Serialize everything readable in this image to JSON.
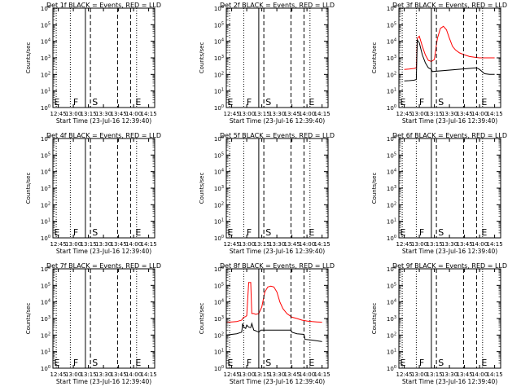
{
  "chart_data": [
    {
      "type": "line",
      "title": "Det 1f BLACK = Events, RED = LLD",
      "xlabel": "Start Time (23-Jul-16 12:39:40)",
      "ylabel": "Counts/sec",
      "xticks": [
        "12:45",
        "13:00",
        "13:15",
        "13:30",
        "13:45",
        "14:00",
        "14:15"
      ],
      "yticks": [
        "10^0",
        "10^1",
        "10^2",
        "10^3",
        "10^4",
        "10^5",
        "10^6"
      ],
      "ylim": [
        1,
        1000000
      ],
      "yscale": "log",
      "xlim": [
        "12:39:40",
        "14:21"
      ],
      "vlines": {
        "dotted": [
          "12:43",
          "12:57",
          "14:03"
        ],
        "solid": [
          "13:12"
        ],
        "dashed": [
          "13:17",
          "13:44",
          "13:57"
        ]
      },
      "markers": [
        {
          "label": "E",
          "x": "12:40"
        },
        {
          "label": "F",
          "x": "12:59"
        },
        {
          "label": "S",
          "x": "13:18"
        },
        {
          "label": "E",
          "x": "14:01"
        }
      ],
      "series": []
    },
    {
      "type": "line",
      "title": "Det 2f BLACK = Events, RED = LLD",
      "xlabel": "Start Time (23-Jul-16 12:39:40)",
      "ylabel": "Counts/sec",
      "xticks": [
        "12:45",
        "13:00",
        "13:15",
        "13:30",
        "13:45",
        "14:00",
        "14:15"
      ],
      "yticks": [
        "10^0",
        "10^1",
        "10^2",
        "10^3",
        "10^4",
        "10^5",
        "10^6"
      ],
      "ylim": [
        1,
        1000000
      ],
      "yscale": "log",
      "xlim": [
        "12:39:40",
        "14:21"
      ],
      "vlines": {
        "dotted": [
          "12:43",
          "12:57",
          "14:03"
        ],
        "solid": [
          "13:12"
        ],
        "dashed": [
          "13:17",
          "13:44",
          "13:57"
        ]
      },
      "markers": [
        {
          "label": "E",
          "x": "12:40"
        },
        {
          "label": "F",
          "x": "12:59"
        },
        {
          "label": "S",
          "x": "13:18"
        },
        {
          "label": "E",
          "x": "14:01"
        }
      ],
      "series": []
    },
    {
      "type": "line",
      "title": "Det 3f BLACK = Events, RED = LLD",
      "xlabel": "Start Time (23-Jul-16 12:39:40)",
      "ylabel": "Counts/sec",
      "xticks": [
        "12:45",
        "13:00",
        "13:15",
        "13:30",
        "13:45",
        "14:00",
        "14:15"
      ],
      "yticks": [
        "10^0",
        "10^1",
        "10^2",
        "10^3",
        "10^4",
        "10^5",
        "10^6"
      ],
      "ylim": [
        1,
        1000000
      ],
      "yscale": "log",
      "xlim": [
        "12:39:40",
        "14:21"
      ],
      "vlines": {
        "dotted": [
          "12:43",
          "12:57",
          "14:03"
        ],
        "solid": [
          "13:12"
        ],
        "dashed": [
          "13:17",
          "13:44",
          "13:57"
        ]
      },
      "markers": [
        {
          "label": "E",
          "x": "12:40"
        },
        {
          "label": "F",
          "x": "12:59"
        },
        {
          "label": "S",
          "x": "13:18"
        },
        {
          "label": "E",
          "x": "14:01"
        }
      ],
      "series": [
        {
          "color": "#ff0000",
          "x": [
            "12:45:00",
            "12:50:00",
            "12:55:00",
            "12:57:00",
            "12:58:00",
            "13:00:00",
            "13:03:00",
            "13:06:00",
            "13:09:00",
            "13:12:00",
            "13:15:00",
            "13:18:00",
            "13:21:00",
            "13:24:00",
            "13:27:00",
            "13:30:00",
            "13:33:00",
            "13:36:00",
            "13:40:00",
            "13:45:00",
            "13:50:00",
            "13:55:00",
            "14:00:00",
            "14:05:00",
            "14:10:00",
            "14:15:00"
          ],
          "y": [
            200,
            210,
            230,
            250,
            15000,
            20000,
            5000,
            1500,
            700,
            600,
            800,
            15000,
            60000,
            80000,
            50000,
            15000,
            5000,
            3000,
            2000,
            1500,
            1200,
            1100,
            1000,
            1000,
            1000,
            1000
          ]
        },
        {
          "color": "#000000",
          "x": [
            "12:45:00",
            "12:50:00",
            "12:55:00",
            "12:57:00",
            "12:58:00",
            "13:00:00",
            "13:03:00",
            "13:06:00",
            "13:09:00",
            "13:12:00",
            "13:13:00",
            "13:57:00",
            "14:00:00",
            "14:05:00",
            "14:10:00",
            "14:15:00"
          ],
          "y": [
            40,
            42,
            45,
            50,
            12000,
            8000,
            1500,
            500,
            250,
            200,
            150,
            250,
            200,
            110,
            100,
            100
          ]
        }
      ]
    },
    {
      "type": "line",
      "title": "Det 4f BLACK = Events, RED = LLD",
      "xlabel": "Start Time (23-Jul-16 12:39:40)",
      "ylabel": "Counts/sec",
      "xticks": [
        "12:45",
        "13:00",
        "13:15",
        "13:30",
        "13:45",
        "14:00",
        "14:15"
      ],
      "yticks": [
        "10^0",
        "10^1",
        "10^2",
        "10^3",
        "10^4",
        "10^5",
        "10^6"
      ],
      "ylim": [
        1,
        1000000
      ],
      "yscale": "log",
      "xlim": [
        "12:39:40",
        "14:21"
      ],
      "vlines": {
        "dotted": [
          "12:43",
          "12:57",
          "14:03"
        ],
        "solid": [
          "13:12"
        ],
        "dashed": [
          "13:17",
          "13:44",
          "13:57"
        ]
      },
      "markers": [
        {
          "label": "E",
          "x": "12:40"
        },
        {
          "label": "F",
          "x": "12:59"
        },
        {
          "label": "S",
          "x": "13:18"
        },
        {
          "label": "E",
          "x": "14:01"
        }
      ],
      "series": []
    },
    {
      "type": "line",
      "title": "Det 5f BLACK = Events, RED = LLD",
      "xlabel": "Start Time (23-Jul-16 12:39:40)",
      "ylabel": "Counts/sec",
      "xticks": [
        "12:45",
        "13:00",
        "13:15",
        "13:30",
        "13:45",
        "14:00",
        "14:15"
      ],
      "yticks": [
        "10^0",
        "10^1",
        "10^2",
        "10^3",
        "10^4",
        "10^5",
        "10^6"
      ],
      "ylim": [
        1,
        1000000
      ],
      "yscale": "log",
      "xlim": [
        "12:39:40",
        "14:21"
      ],
      "vlines": {
        "dotted": [
          "12:43",
          "12:57",
          "14:03"
        ],
        "solid": [
          "13:12"
        ],
        "dashed": [
          "13:17",
          "13:44",
          "13:57"
        ]
      },
      "markers": [
        {
          "label": "E",
          "x": "12:40"
        },
        {
          "label": "F",
          "x": "12:59"
        },
        {
          "label": "S",
          "x": "13:18"
        },
        {
          "label": "E",
          "x": "14:01"
        }
      ],
      "series": []
    },
    {
      "type": "line",
      "title": "Det 6f BLACK = Events, RED = LLD",
      "xlabel": "Start Time (23-Jul-16 12:39:40)",
      "ylabel": "Counts/sec",
      "xticks": [
        "12:45",
        "13:00",
        "13:15",
        "13:30",
        "13:45",
        "14:00",
        "14:15"
      ],
      "yticks": [
        "10^0",
        "10^1",
        "10^2",
        "10^3",
        "10^4",
        "10^5",
        "10^6"
      ],
      "ylim": [
        1,
        1000000
      ],
      "yscale": "log",
      "xlim": [
        "12:39:40",
        "14:21"
      ],
      "vlines": {
        "dotted": [
          "12:43",
          "12:57",
          "14:03"
        ],
        "solid": [
          "13:12"
        ],
        "dashed": [
          "13:17",
          "13:44",
          "13:57"
        ]
      },
      "markers": [
        {
          "label": "E",
          "x": "12:40"
        },
        {
          "label": "F",
          "x": "12:59"
        },
        {
          "label": "S",
          "x": "13:18"
        },
        {
          "label": "E",
          "x": "14:01"
        }
      ],
      "series": []
    },
    {
      "type": "line",
      "title": "Det 7f BLACK = Events, RED = LLD",
      "xlabel": "Start Time (23-Jul-16 12:39:40)",
      "ylabel": "Counts/sec",
      "xticks": [
        "12:45",
        "13:00",
        "13:15",
        "13:30",
        "13:45",
        "14:00",
        "14:15"
      ],
      "yticks": [
        "10^0",
        "10^1",
        "10^2",
        "10^3",
        "10^4",
        "10^5",
        "10^6"
      ],
      "ylim": [
        1,
        1000000
      ],
      "yscale": "log",
      "xlim": [
        "12:39:40",
        "14:21"
      ],
      "vlines": {
        "dotted": [
          "12:43",
          "12:57",
          "14:03"
        ],
        "solid": [
          "13:12"
        ],
        "dashed": [
          "13:17",
          "13:44",
          "13:57"
        ]
      },
      "markers": [
        {
          "label": "E",
          "x": "12:40"
        },
        {
          "label": "F",
          "x": "12:59"
        },
        {
          "label": "S",
          "x": "13:18"
        },
        {
          "label": "E",
          "x": "14:01"
        }
      ],
      "series": []
    },
    {
      "type": "line",
      "title": "Det 8f BLACK = Events, RED = LLD",
      "xlabel": "Start Time (23-Jul-16 12:39:40)",
      "ylabel": "Counts/sec",
      "xticks": [
        "12:45",
        "13:00",
        "13:15",
        "13:30",
        "13:45",
        "14:00",
        "14:15"
      ],
      "yticks": [
        "10^0",
        "10^1",
        "10^2",
        "10^3",
        "10^4",
        "10^5",
        "10^6"
      ],
      "ylim": [
        1,
        1000000
      ],
      "yscale": "log",
      "xlim": [
        "12:39:40",
        "14:21"
      ],
      "vlines": {
        "dotted": [
          "12:43",
          "12:57",
          "14:03"
        ],
        "solid": [
          "13:12"
        ],
        "dashed": [
          "13:17",
          "13:44",
          "13:57"
        ]
      },
      "markers": [
        {
          "label": "E",
          "x": "12:40"
        },
        {
          "label": "F",
          "x": "12:59"
        },
        {
          "label": "S",
          "x": "13:18"
        },
        {
          "label": "E",
          "x": "14:01"
        }
      ],
      "series": [
        {
          "color": "#ff0000",
          "x": [
            "12:40:00",
            "12:45:00",
            "12:50:00",
            "12:55:00",
            "12:56:00",
            "12:57:00",
            "12:59:00",
            "13:00:00",
            "13:02:00",
            "13:04:00",
            "13:05:00",
            "13:07:00",
            "13:09:00",
            "13:12:00",
            "13:15:00",
            "13:18:00",
            "13:21:00",
            "13:24:00",
            "13:27:00",
            "13:30:00",
            "13:33:00",
            "13:36:00",
            "13:40:00",
            "13:45:00",
            "13:50:00",
            "13:55:00",
            "14:00:00",
            "14:05:00",
            "14:10:00",
            "14:15:00"
          ],
          "y": [
            600,
            620,
            650,
            800,
            1000,
            1200,
            1300,
            1500,
            150000,
            150000,
            2000,
            2000,
            1800,
            2000,
            5000,
            40000,
            80000,
            90000,
            80000,
            40000,
            10000,
            4000,
            2000,
            1200,
            1000,
            800,
            700,
            650,
            620,
            600
          ]
        },
        {
          "color": "#000000",
          "x": [
            "12:40:00",
            "12:45:00",
            "12:50:00",
            "12:55:00",
            "12:56:00",
            "12:57:00",
            "12:59:00",
            "13:00:00",
            "13:02:00",
            "13:04:00",
            "13:05:00",
            "13:07:00",
            "13:09:00",
            "13:12:00",
            "13:14:00",
            "13:44:00",
            "13:45:00",
            "13:50:00",
            "13:57:00",
            "13:58:00",
            "14:05:00",
            "14:10:00",
            "14:15:00"
          ],
          "y": [
            100,
            110,
            120,
            150,
            500,
            300,
            250,
            400,
            300,
            280,
            500,
            200,
            180,
            150,
            200,
            200,
            150,
            120,
            110,
            55,
            50,
            45,
            40
          ]
        }
      ]
    },
    {
      "type": "line",
      "title": "Det 9f BLACK = Events, RED = LLD",
      "xlabel": "Start Time (23-Jul-16 12:39:40)",
      "ylabel": "Counts/sec",
      "xticks": [
        "12:45",
        "13:00",
        "13:15",
        "13:30",
        "13:45",
        "14:00",
        "14:15"
      ],
      "yticks": [
        "10^0",
        "10^1",
        "10^2",
        "10^3",
        "10^4",
        "10^5",
        "10^6"
      ],
      "ylim": [
        1,
        1000000
      ],
      "yscale": "log",
      "xlim": [
        "12:39:40",
        "14:21"
      ],
      "vlines": {
        "dotted": [
          "12:43",
          "12:57",
          "14:03"
        ],
        "solid": [
          "13:12"
        ],
        "dashed": [
          "13:17",
          "13:44",
          "13:57"
        ]
      },
      "markers": [
        {
          "label": "E",
          "x": "12:40"
        },
        {
          "label": "F",
          "x": "12:59"
        },
        {
          "label": "S",
          "x": "13:18"
        },
        {
          "label": "E",
          "x": "14:01"
        }
      ],
      "series": []
    }
  ]
}
